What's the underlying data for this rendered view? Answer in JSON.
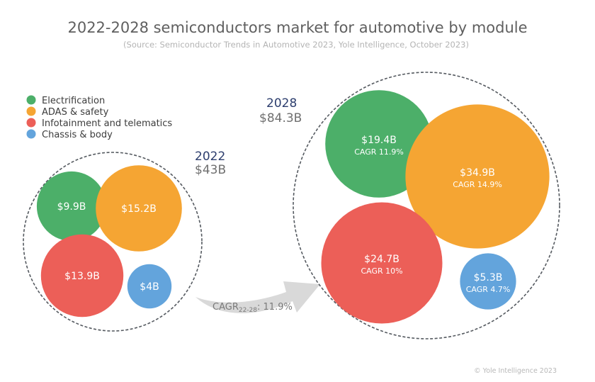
{
  "chart_data": {
    "type": "bubble",
    "title": "2022-2028 semiconductors market for automotive by module",
    "subtitle": "(Source: Semiconductor Trends in Automotive 2023, Yole Intelligence, October 2023)",
    "unit": "$B",
    "legend": {
      "placement": "top-left",
      "entries": [
        {
          "name": "Electrification",
          "color": "#4caf69"
        },
        {
          "name": "ADAS & safety",
          "color": "#f5a533"
        },
        {
          "name": "Infotainment and telematics",
          "color": "#ec5f58"
        },
        {
          "name": "Chassis & body",
          "color": "#63a4dc"
        }
      ]
    },
    "groups": [
      {
        "year": "2022",
        "total_label": "$43B",
        "total": 43,
        "bubbles": [
          {
            "category": "Electrification",
            "value": 9.9,
            "label": "$9.9B",
            "cagr_label": ""
          },
          {
            "category": "ADAS & safety",
            "value": 15.2,
            "label": "$15.2B",
            "cagr_label": ""
          },
          {
            "category": "Infotainment and telematics",
            "value": 13.9,
            "label": "$13.9B",
            "cagr_label": ""
          },
          {
            "category": "Chassis & body",
            "value": 4,
            "label": "$4B",
            "cagr_label": ""
          }
        ]
      },
      {
        "year": "2028",
        "total_label": "$84.3B",
        "total": 84.3,
        "bubbles": [
          {
            "category": "Electrification",
            "value": 19.4,
            "label": "$19.4B",
            "cagr": 11.9,
            "cagr_label": "CAGR 11.9%"
          },
          {
            "category": "ADAS & safety",
            "value": 34.9,
            "label": "$34.9B",
            "cagr": 14.9,
            "cagr_label": "CAGR 14.9%"
          },
          {
            "category": "Infotainment and telematics",
            "value": 24.7,
            "label": "$24.7B",
            "cagr": 10,
            "cagr_label": "CAGR 10%"
          },
          {
            "category": "Chassis & body",
            "value": 5.3,
            "label": "$5.3B",
            "cagr": 4.7,
            "cagr_label": "CAGR 4.7%"
          }
        ]
      }
    ],
    "overall_cagr": {
      "prefix": "CAGR",
      "subscript": "22-28",
      "value_text": ": 11.9%",
      "value": 11.9
    },
    "copyright": "© Yole Intelligence 2023"
  }
}
